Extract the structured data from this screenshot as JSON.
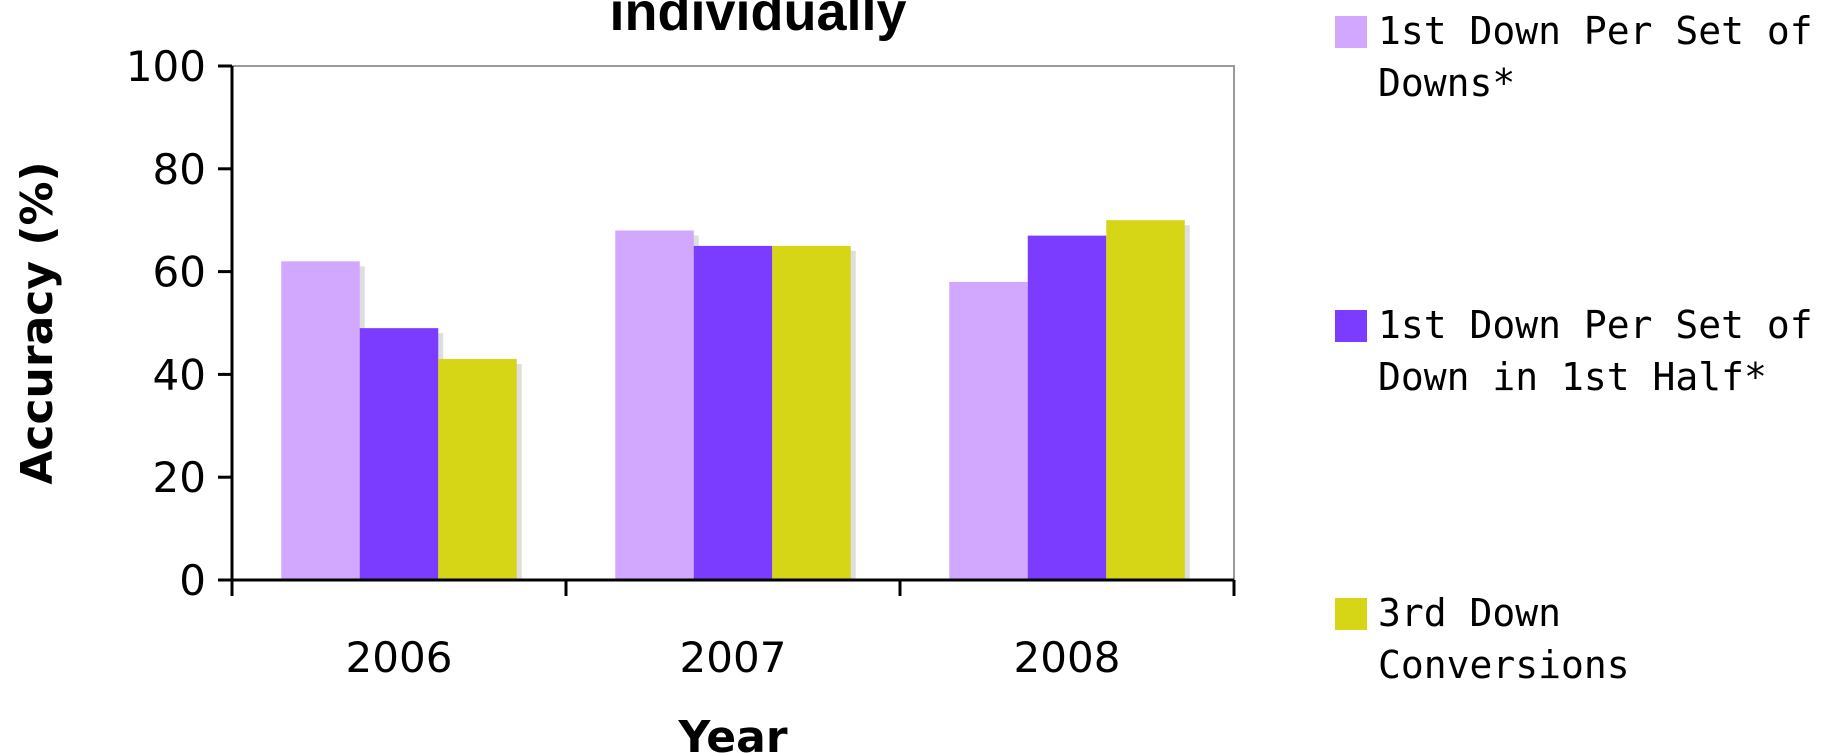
{
  "chart_data": {
    "type": "bar",
    "title": "individually",
    "xlabel": "Year",
    "ylabel": "Accuracy (%)",
    "categories": [
      "2006",
      "2007",
      "2008"
    ],
    "yticks": [
      "0",
      "20",
      "40",
      "60",
      "80",
      "100"
    ],
    "ylim": [
      0,
      100
    ],
    "grid": false,
    "legend_position": "right",
    "series": [
      {
        "name_lines": [
          "1st Down Per Set of",
          "Downs*"
        ],
        "color": "#d2a8fe",
        "values": [
          62,
          68,
          58
        ]
      },
      {
        "name_lines": [
          "1st Down Per Set of",
          "Down in 1st Half*"
        ],
        "color": "#7c3cff",
        "values": [
          49,
          65,
          67
        ]
      },
      {
        "name_lines": [
          "3rd Down",
          "Conversions"
        ],
        "color": "#d6d516",
        "values": [
          43,
          65,
          70
        ]
      }
    ]
  }
}
